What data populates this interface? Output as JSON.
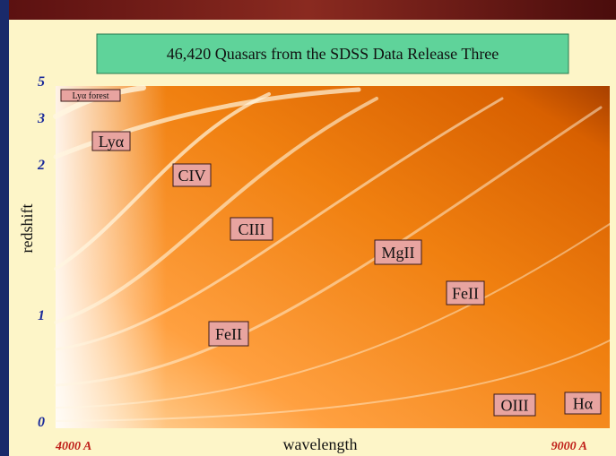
{
  "title": "46,420 Quasars from the SDSS Data Release Three",
  "y_axis": {
    "label": "redshift",
    "ticks": [
      "5",
      "3",
      "2",
      "1",
      "0"
    ]
  },
  "x_axis": {
    "label": "wavelength",
    "start": "4000 A",
    "end": "9000 A"
  },
  "annotations": [
    "Lyα forest",
    "Lyα",
    "CIV",
    "CIII",
    "MgII",
    "FeII",
    "FeII",
    "OIII",
    "Hα"
  ]
}
